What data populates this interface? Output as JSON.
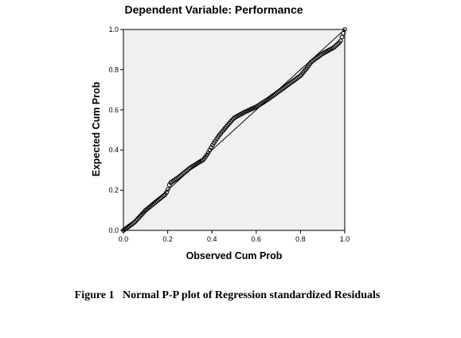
{
  "chart_data": {
    "type": "scatter",
    "title": "Dependent Variable: Performance",
    "xlabel": "Observed Cum Prob",
    "ylabel": "Expected Cum Prob",
    "xlim": [
      0.0,
      1.0
    ],
    "ylim": [
      0.0,
      1.0
    ],
    "x_ticks": [
      "0.0",
      "0.2",
      "0.4",
      "0.6",
      "0.8",
      "1.0"
    ],
    "y_ticks": [
      "0.0",
      "0.2",
      "0.4",
      "0.6",
      "0.8",
      "1.0"
    ],
    "reference_line": [
      [
        0.0,
        0.0
      ],
      [
        1.0,
        1.0
      ]
    ],
    "grid": false,
    "plot_background": "#f0f0f0",
    "marker_color": "#000000",
    "curve_knots": [
      [
        0.0,
        0.0
      ],
      [
        0.05,
        0.04
      ],
      [
        0.1,
        0.1
      ],
      [
        0.15,
        0.145
      ],
      [
        0.19,
        0.18
      ],
      [
        0.2,
        0.2
      ],
      [
        0.21,
        0.235
      ],
      [
        0.25,
        0.265
      ],
      [
        0.3,
        0.31
      ],
      [
        0.35,
        0.345
      ],
      [
        0.36,
        0.35
      ],
      [
        0.38,
        0.38
      ],
      [
        0.4,
        0.42
      ],
      [
        0.43,
        0.47
      ],
      [
        0.46,
        0.51
      ],
      [
        0.5,
        0.56
      ],
      [
        0.55,
        0.59
      ],
      [
        0.6,
        0.615
      ],
      [
        0.65,
        0.65
      ],
      [
        0.7,
        0.69
      ],
      [
        0.75,
        0.73
      ],
      [
        0.8,
        0.77
      ],
      [
        0.83,
        0.81
      ],
      [
        0.85,
        0.84
      ],
      [
        0.9,
        0.88
      ],
      [
        0.95,
        0.91
      ],
      [
        0.98,
        0.94
      ],
      [
        1.0,
        1.0
      ]
    ],
    "n_points": 160
  },
  "caption": "Figure 1   Normal P-P plot of Regression standardized Residuals"
}
